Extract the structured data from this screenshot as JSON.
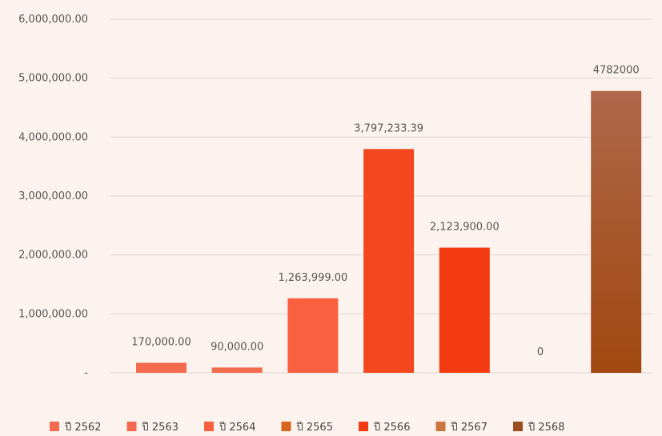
{
  "chart_data": {
    "type": "bar",
    "title": "",
    "xlabel": "",
    "ylabel": "",
    "ylim": [
      0,
      6000000
    ],
    "y_ticks": [
      {
        "value": 0,
        "label": "-"
      },
      {
        "value": 1000000,
        "label": "1,000,000.00"
      },
      {
        "value": 2000000,
        "label": "2,000,000.00"
      },
      {
        "value": 3000000,
        "label": "3,000,000.00"
      },
      {
        "value": 4000000,
        "label": "4,000,000.00"
      },
      {
        "value": 5000000,
        "label": "5,000,000.00"
      },
      {
        "value": 6000000,
        "label": "6,000,000.00"
      }
    ],
    "grid": true,
    "legend_position": "bottom",
    "series": [
      {
        "name": "ปี 2562",
        "value": 170000,
        "label": "170,000.00",
        "color": "#f36b4f"
      },
      {
        "name": "ปี 2563",
        "value": 90000,
        "label": "90,000.00",
        "color": "#f36b4f"
      },
      {
        "name": "ปี 2564",
        "value": 1263999,
        "label": "1,263,999.00",
        "color": "#f8603f"
      },
      {
        "name": "ปี 2565",
        "value": 3797233.39,
        "label": "3,797,233.39",
        "color": "#f5471f"
      },
      {
        "name": "ปี 2566",
        "value": 2123900,
        "label": "2,123,900.00",
        "color": "#f43a10"
      },
      {
        "name": "ปี 2567",
        "value": 0,
        "label": "0",
        "color": "#c9773f"
      },
      {
        "name": "ปี 2568",
        "value": 4782000,
        "label": "4782000",
        "color": "#a5521d",
        "gradient_top": "#b0674a"
      }
    ],
    "legend": [
      {
        "label": "ปี 2562",
        "color": "#f36b4f"
      },
      {
        "label": "ปี 2563",
        "color": "#f36b4f"
      },
      {
        "label": "ปี 2564",
        "color": "#f8603f"
      },
      {
        "label": "ปี 2565",
        "color": "#d8661e"
      },
      {
        "label": "ปี 2566",
        "color": "#f43a10"
      },
      {
        "label": "ปี 2567",
        "color": "#c9773f"
      },
      {
        "label": "ปี 2568",
        "color": "#9b4d22"
      }
    ]
  }
}
